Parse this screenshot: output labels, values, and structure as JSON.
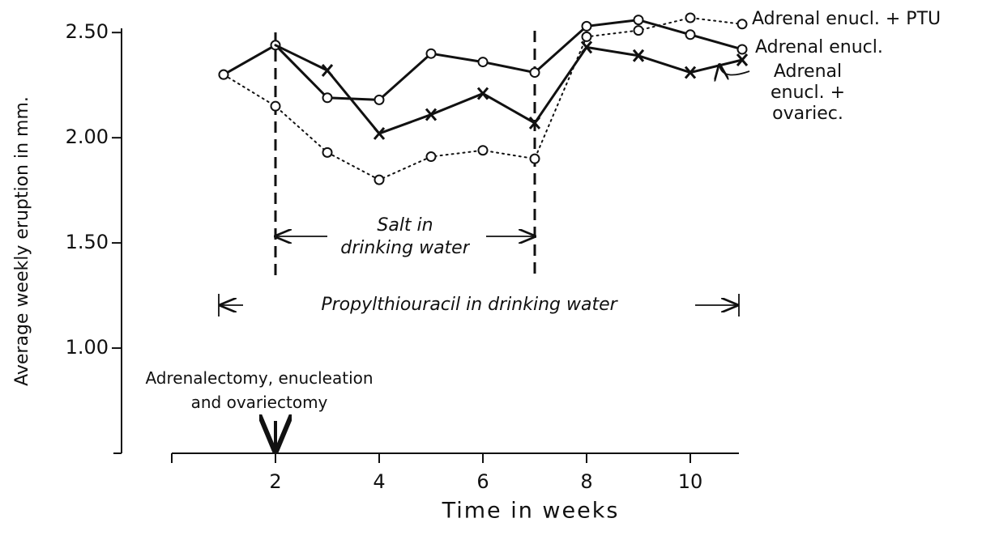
{
  "chart_data": {
    "type": "line",
    "x_label": "Time in weeks",
    "y_label": "Average weekly eruption in mm.",
    "x": [
      1,
      2,
      3,
      4,
      5,
      6,
      7,
      8,
      9,
      10,
      11
    ],
    "series": [
      {
        "name": "Adrenal enucl. + PTU",
        "color": "#111111",
        "dash": "dotted",
        "marker": "circle",
        "values": [
          2.3,
          2.15,
          1.93,
          1.8,
          1.91,
          1.94,
          1.9,
          2.48,
          2.51,
          2.57,
          2.54
        ]
      },
      {
        "name": "Adrenal enucl.",
        "color": "#111111",
        "dash": "solid",
        "marker": "circle",
        "values": [
          2.3,
          2.44,
          2.19,
          2.18,
          2.4,
          2.36,
          2.31,
          2.53,
          2.56,
          2.49,
          2.42
        ]
      },
      {
        "name": "Adrenal enucl. + ovariec.",
        "color": "#111111",
        "dash": "solid",
        "marker": "x",
        "values": [
          null,
          2.44,
          2.32,
          2.02,
          2.11,
          2.21,
          2.07,
          2.43,
          2.39,
          2.31,
          2.37
        ]
      }
    ],
    "xlim": [
      0,
      11
    ],
    "xticks": [
      2,
      4,
      6,
      8,
      10
    ],
    "ylim": [
      0.5,
      2.52
    ],
    "yticks": [
      {
        "value": 1,
        "label": "1.00"
      },
      {
        "value": 1.5,
        "label": "1.50"
      },
      {
        "value": 2,
        "label": "2.00"
      },
      {
        "value": 2.5,
        "label": "2.50"
      }
    ],
    "annotations": [
      "Salt in drinking water",
      "Propylthiouracil in drinking water",
      "Adrenalectomy, enucleation and ovariectomy"
    ]
  }
}
